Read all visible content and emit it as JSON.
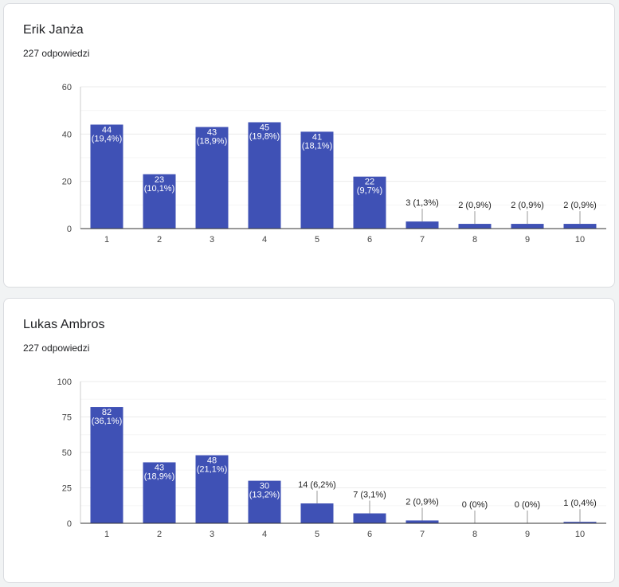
{
  "colors": {
    "bar": "#3f51b5",
    "grid": "#ebebeb",
    "axis": "#333333",
    "tick": "#444444"
  },
  "chart_data": [
    {
      "type": "bar",
      "title": "Erik Janża",
      "subtitle": "227 odpowiedzi",
      "categories": [
        "1",
        "2",
        "3",
        "4",
        "5",
        "6",
        "7",
        "8",
        "9",
        "10"
      ],
      "values": [
        44,
        23,
        43,
        45,
        41,
        22,
        3,
        2,
        2,
        2
      ],
      "data_labels": [
        "44 (19,4%)",
        "23 (10,1%)",
        "43 (18,9%)",
        "45 (19,8%)",
        "41 (18,1%)",
        "22 (9,7%)",
        "3 (1,3%)",
        "2 (0,9%)",
        "2 (0,9%)",
        "2 (0,9%)"
      ],
      "ylim": [
        0,
        60
      ],
      "yticks": [
        0,
        20,
        40,
        60
      ],
      "grid": true
    },
    {
      "type": "bar",
      "title": "Lukas Ambros",
      "subtitle": "227 odpowiedzi",
      "categories": [
        "1",
        "2",
        "3",
        "4",
        "5",
        "6",
        "7",
        "8",
        "9",
        "10"
      ],
      "values": [
        82,
        43,
        48,
        30,
        14,
        7,
        2,
        0,
        0,
        1
      ],
      "data_labels": [
        "82 (36,1%)",
        "43 (18,9%)",
        "48 (21,1%)",
        "30 (13,2%)",
        "14 (6,2%)",
        "7 (3,1%)",
        "2 (0,9%)",
        "0 (0%)",
        "0 (0%)",
        "1 (0,4%)"
      ],
      "ylim": [
        0,
        100
      ],
      "yticks": [
        0,
        25,
        50,
        75,
        100
      ],
      "grid": true
    }
  ]
}
